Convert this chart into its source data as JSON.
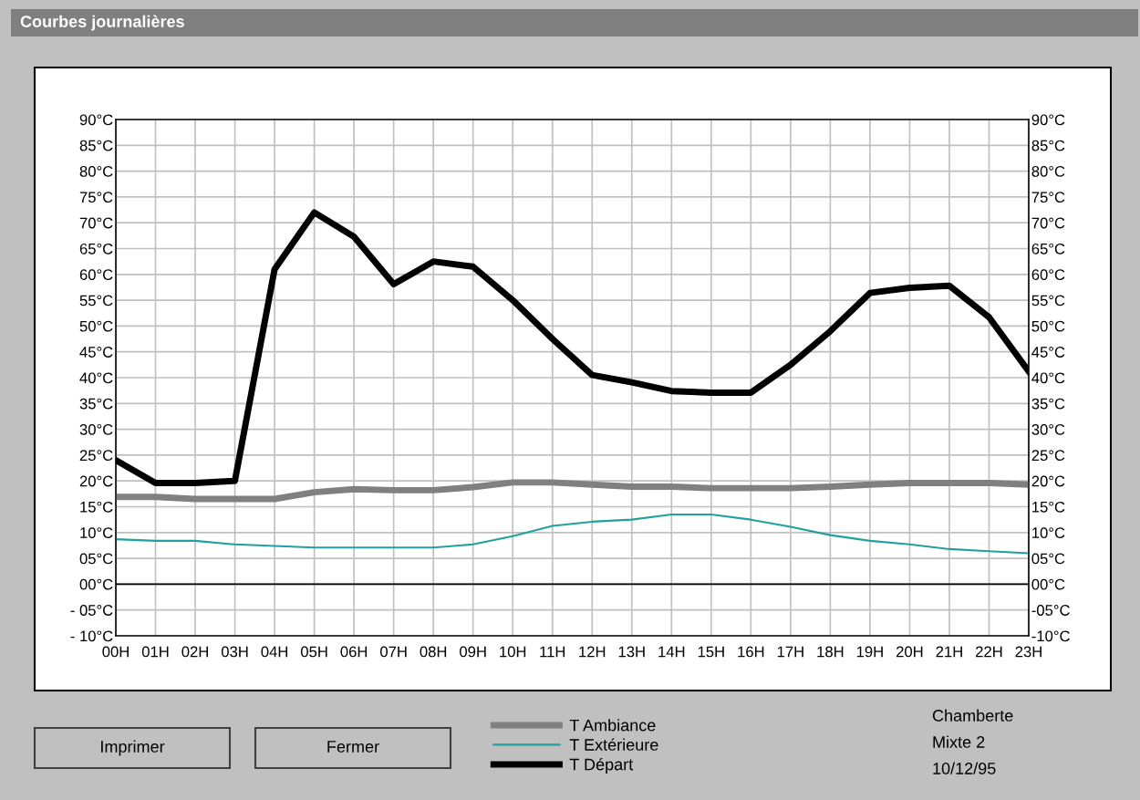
{
  "chart_data": {
    "type": "line",
    "title": "Courbes journalières",
    "categories": [
      "00H",
      "01H",
      "02H",
      "03H",
      "04H",
      "05H",
      "06H",
      "07H",
      "08H",
      "09H",
      "10H",
      "11H",
      "12H",
      "13H",
      "14H",
      "15H",
      "16H",
      "17H",
      "18H",
      "19H",
      "20H",
      "21H",
      "22H",
      "23H"
    ],
    "series": [
      {
        "name": "T Ambiance",
        "color": "#808080",
        "values": [
          16.9,
          16.9,
          16.5,
          16.5,
          16.5,
          17.8,
          18.4,
          18.2,
          18.2,
          18.8,
          19.7,
          19.7,
          19.3,
          18.9,
          18.9,
          18.6,
          18.6,
          18.6,
          18.9,
          19.3,
          19.6,
          19.6,
          19.6,
          19.3
        ]
      },
      {
        "name": "T Extérieure",
        "color": "#20a0a0",
        "values": [
          8.7,
          8.4,
          8.4,
          7.7,
          7.4,
          7.1,
          7.1,
          7.1,
          7.1,
          7.7,
          9.3,
          11.3,
          12.1,
          12.5,
          13.5,
          13.5,
          12.5,
          11.1,
          9.5,
          8.4,
          7.7,
          6.8,
          6.4,
          6.0
        ]
      },
      {
        "name": "T Départ",
        "color": "#000000",
        "values": [
          24,
          19.6,
          19.6,
          20,
          61,
          72,
          67.3,
          58.1,
          62.5,
          61.5,
          55,
          47.5,
          40.5,
          39.1,
          37.4,
          37.1,
          37.1,
          42.5,
          49,
          56.4,
          57.4,
          57.8,
          51.7,
          41.2
        ]
      }
    ],
    "ylim": [
      -10,
      90
    ],
    "yticks": [
      {
        "value": 90,
        "label": "90°C"
      },
      {
        "value": 85,
        "label": "85°C"
      },
      {
        "value": 80,
        "label": "80°C"
      },
      {
        "value": 75,
        "label": "75°C"
      },
      {
        "value": 70,
        "label": "70°C"
      },
      {
        "value": 65,
        "label": "65°C"
      },
      {
        "value": 60,
        "label": "60°C"
      },
      {
        "value": 55,
        "label": "55°C"
      },
      {
        "value": 50,
        "label": "50°C"
      },
      {
        "value": 45,
        "label": "45°C"
      },
      {
        "value": 40,
        "label": "40°C"
      },
      {
        "value": 35,
        "label": "35°C"
      },
      {
        "value": 30,
        "label": "30°C"
      },
      {
        "value": 25,
        "label": "25°C"
      },
      {
        "value": 20,
        "label": "20°C"
      },
      {
        "value": 15,
        "label": "15°C"
      },
      {
        "value": 10,
        "label": "10°C"
      },
      {
        "value": 5,
        "label": "05°C"
      },
      {
        "value": 0,
        "label": "00°C"
      },
      {
        "value": -5,
        "label": "- 05°C"
      },
      {
        "value": -10,
        "label": "- 10°C"
      }
    ],
    "y2lim": [
      -10,
      90
    ],
    "y2ticks": [
      {
        "value": 90,
        "label": "90°C"
      },
      {
        "value": 85,
        "label": "85°C"
      },
      {
        "value": 80,
        "label": "80°C"
      },
      {
        "value": 75,
        "label": "75°C"
      },
      {
        "value": 70,
        "label": "70°C"
      },
      {
        "value": 65,
        "label": "65°C"
      },
      {
        "value": 60,
        "label": "60°C"
      },
      {
        "value": 55,
        "label": "55°C"
      },
      {
        "value": 50,
        "label": "50°C"
      },
      {
        "value": 45,
        "label": "45°C"
      },
      {
        "value": 40,
        "label": "40°C"
      },
      {
        "value": 35,
        "label": "35°C"
      },
      {
        "value": 30,
        "label": "30°C"
      },
      {
        "value": 25,
        "label": "25°C"
      },
      {
        "value": 20,
        "label": "20°C"
      },
      {
        "value": 15,
        "label": "15°C"
      },
      {
        "value": 10,
        "label": "10°C"
      },
      {
        "value": 5,
        "label": "05°C"
      },
      {
        "value": 0,
        "label": "00°C"
      },
      {
        "value": -5,
        "label": "-05°C"
      },
      {
        "value": -10,
        "label": "-10°C"
      }
    ],
    "ref_lines": [
      {
        "axis": "y",
        "value": 0,
        "color": "#000000"
      }
    ],
    "grid": true,
    "legend": "bottom",
    "marker": "none",
    "line_style": "solid",
    "annotations": [
      "Imprimer",
      "Fermer",
      "Chamberte",
      "Mixte 2",
      "10/12/95"
    ]
  }
}
